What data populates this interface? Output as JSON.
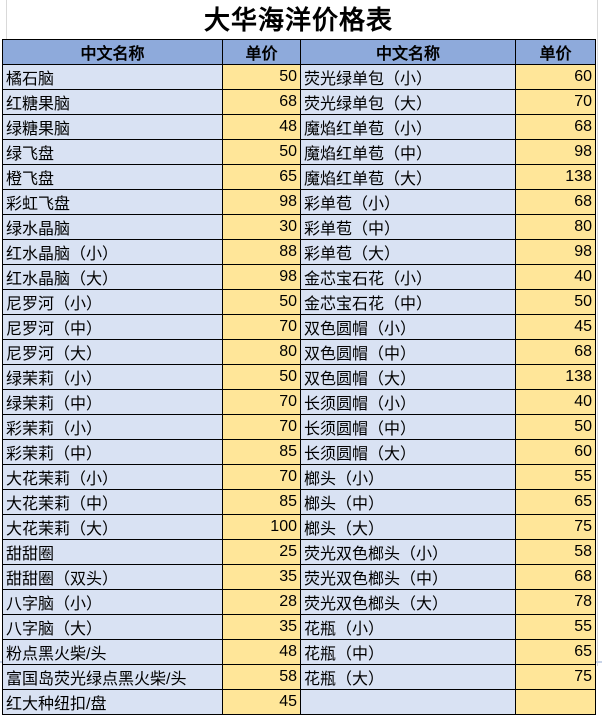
{
  "title": "大华海洋价格表",
  "table": {
    "columns": [
      "中文名称",
      "单价",
      "中文名称",
      "单价"
    ],
    "rows": [
      [
        "橘石脑",
        "50",
        "荧光绿单包（小）",
        "60"
      ],
      [
        "红糖果脑",
        "68",
        "荧光绿单包（大）",
        "70"
      ],
      [
        "绿糖果脑",
        "48",
        "魔焰红单苞（小）",
        "68"
      ],
      [
        "绿飞盘",
        "50",
        "魔焰红单苞（中）",
        "98"
      ],
      [
        "橙飞盘",
        "65",
        "魔焰红单苞（大）",
        "138"
      ],
      [
        "彩虹飞盘",
        "98",
        "彩单苞（小）",
        "68"
      ],
      [
        "绿水晶脑",
        "30",
        "彩单苞（中）",
        "80"
      ],
      [
        "红水晶脑（小）",
        "88",
        "彩单苞（大）",
        "98"
      ],
      [
        "红水晶脑（大）",
        "98",
        "金芯宝石花（小）",
        "40"
      ],
      [
        "尼罗河（小）",
        "50",
        "金芯宝石花（中）",
        "50"
      ],
      [
        "尼罗河（中）",
        "70",
        "双色圆帽（小）",
        "45"
      ],
      [
        "尼罗河（大）",
        "80",
        "双色圆帽（中）",
        "68"
      ],
      [
        "绿茉莉（小）",
        "50",
        "双色圆帽（大）",
        "138"
      ],
      [
        "绿茉莉（中）",
        "70",
        "长须圆帽（小）",
        "40"
      ],
      [
        "彩茉莉（小）",
        "70",
        "长须圆帽（中）",
        "50"
      ],
      [
        "彩茉莉（中）",
        "85",
        "长须圆帽（大）",
        "60"
      ],
      [
        "大花茉莉（小）",
        "70",
        "榔头（小）",
        "55"
      ],
      [
        "大花茉莉（中）",
        "85",
        "榔头（中）",
        "65"
      ],
      [
        "大花茉莉（大）",
        "100",
        "榔头（大）",
        "75"
      ],
      [
        "甜甜圈",
        "25",
        "荧光双色榔头（小）",
        "58"
      ],
      [
        "甜甜圈（双头）",
        "35",
        "荧光双色榔头（中）",
        "68"
      ],
      [
        "八字脑（小）",
        "28",
        "荧光双色榔头（大）",
        "78"
      ],
      [
        "八字脑（大）",
        "35",
        "花瓶（小）",
        "55"
      ],
      [
        "粉点黑火柴/头",
        "48",
        "花瓶（中）",
        "65"
      ],
      [
        "富国岛荧光绿点黑火柴/头",
        "58",
        "花瓶（大）",
        "75"
      ],
      [
        "红大种纽扣/盘",
        "45",
        "",
        ""
      ]
    ]
  },
  "colors": {
    "header_bg": "#8eaadb",
    "name_cell_bg": "#d9e2f3",
    "price_cell_bg": "#ffe699",
    "border": "#000000",
    "gridline": "#d9d9d9",
    "bottom_line": "#c9d4e8",
    "title_text": "#000000"
  }
}
